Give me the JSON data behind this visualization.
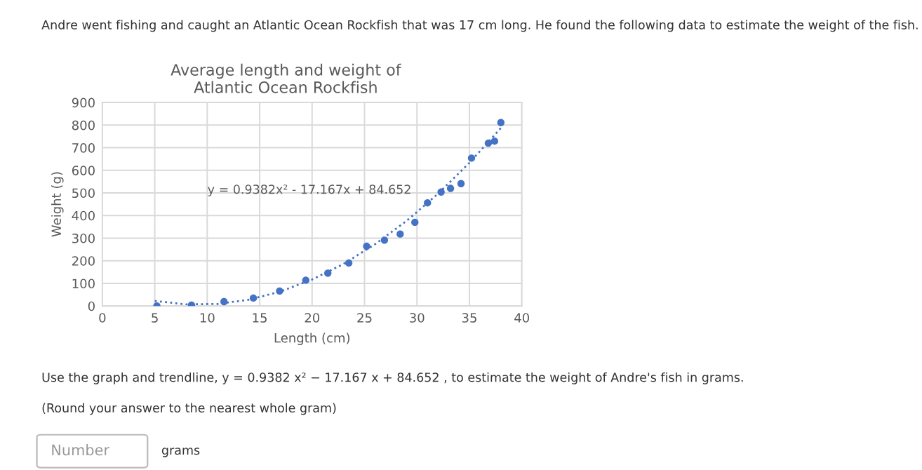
{
  "chart_data": {
    "type": "scatter",
    "title": "Average length and weight of\nAtlantic Ocean Rockfish",
    "xlabel": "Length (cm)",
    "ylabel": "Weight (g)",
    "xlim": [
      0,
      40
    ],
    "xticks": [
      0,
      5,
      10,
      15,
      20,
      25,
      30,
      35,
      40
    ],
    "ylim": [
      0,
      900
    ],
    "yticks": [
      0,
      100,
      200,
      300,
      400,
      500,
      600,
      700,
      800,
      900
    ],
    "grid": true,
    "marker": "circle",
    "series": [
      {
        "color": "#4472c4",
        "x": [
          5.2,
          8.5,
          11.6,
          14.4,
          16.9,
          19.4,
          21.5,
          23.5,
          25.2,
          26.9,
          28.4,
          29.8,
          31.0,
          32.3,
          33.2,
          34.2,
          35.2,
          36.8,
          37.4,
          38.0
        ],
        "values": [
          0,
          4,
          19,
          35,
          66,
          114,
          145,
          190,
          264,
          291,
          318,
          370,
          456,
          504,
          520,
          541,
          654,
          720,
          729,
          811
        ]
      },
      {
        "type": "line",
        "color": "#4472c4",
        "line_style": "dotted",
        "marker": "none",
        "x": [
          5,
          8,
          11,
          14,
          17,
          20,
          23,
          26,
          29,
          32,
          35,
          38
        ],
        "values": [
          22,
          7,
          9,
          28,
          64,
          117,
          186,
          273,
          376,
          496,
          633,
          787
        ]
      }
    ],
    "annotations": [
      "y = 0.9382x² - 17.167x + 84.652",
      "Andre went fishing and caught an Atlantic Ocean Rockfish that was 17 cm long. He found the following data to estimate the weight of the fish.",
      "Use the graph and trendline, y = 0.9382 x² − 17.167 x + 84.652 , to estimate the weight of Andre's fish in grams.",
      "(Round your answer to the nearest whole gram)",
      "Number",
      "grams"
    ]
  }
}
